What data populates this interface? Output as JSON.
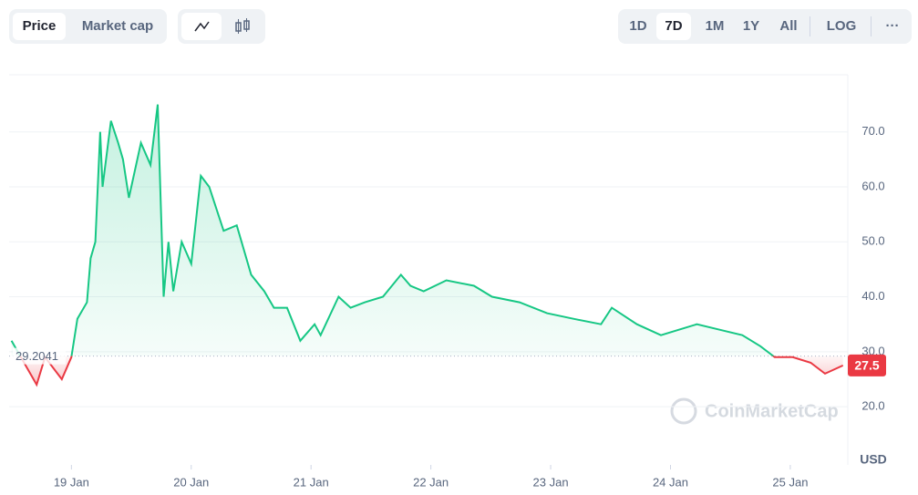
{
  "controls": {
    "metric_tabs": [
      "Price",
      "Market cap"
    ],
    "ranges": [
      "1D",
      "7D",
      "1M",
      "1Y",
      "All"
    ],
    "selected_range": "7D",
    "log": "LOG",
    "more": "···"
  },
  "chart_data": {
    "type": "line",
    "currency": "USD",
    "watermark": "CoinMarketCap",
    "baseline": 29.2041,
    "up_color": "#16c784",
    "down_color": "#ea3943",
    "grid": true,
    "x": [
      18.5,
      18.71,
      18.78,
      18.92,
      19.0,
      19.05,
      19.13,
      19.16,
      19.2,
      19.24,
      19.26,
      19.33,
      19.39,
      19.43,
      19.48,
      19.58,
      19.66,
      19.72,
      19.77,
      19.81,
      19.85,
      19.92,
      20.0,
      20.08,
      20.15,
      20.27,
      20.38,
      20.5,
      20.61,
      20.69,
      20.8,
      20.91,
      21.03,
      21.08,
      21.23,
      21.33,
      21.45,
      21.6,
      21.75,
      21.83,
      21.94,
      22.13,
      22.36,
      22.51,
      22.74,
      22.97,
      23.19,
      23.42,
      23.51,
      23.72,
      23.92,
      24.07,
      24.22,
      24.41,
      24.6,
      24.75,
      24.87,
      25.02,
      25.17,
      25.29,
      25.44
    ],
    "series": [
      {
        "values": [
          32,
          24,
          29,
          25,
          29,
          36,
          39,
          47,
          50,
          70,
          60,
          72,
          68,
          65,
          58,
          68,
          64,
          75,
          40,
          50,
          41,
          50,
          46,
          62,
          60,
          52,
          53,
          44,
          41,
          38,
          38,
          32,
          35,
          33,
          40,
          38,
          39,
          40,
          44,
          42,
          41,
          43,
          42,
          40,
          39,
          37,
          36,
          35,
          38,
          35,
          33,
          34,
          35,
          34,
          33,
          31,
          29,
          29,
          28,
          26,
          27.5
        ]
      }
    ],
    "xlim": [
      18.48,
      25.48
    ],
    "xticks": [
      {
        "value": 19,
        "label": "19 Jan"
      },
      {
        "value": 20,
        "label": "20 Jan"
      },
      {
        "value": 21,
        "label": "21 Jan"
      },
      {
        "value": 22,
        "label": "22 Jan"
      },
      {
        "value": 23,
        "label": "23 Jan"
      },
      {
        "value": 24,
        "label": "24 Jan"
      },
      {
        "value": 25,
        "label": "25 Jan"
      }
    ],
    "ylim": [
      9.4,
      80.4
    ],
    "yticks": [
      {
        "value": 20,
        "label": "20.0"
      },
      {
        "value": 30,
        "label": "30.0"
      },
      {
        "value": 40,
        "label": "40.0"
      },
      {
        "value": 50,
        "label": "50.0"
      },
      {
        "value": 60,
        "label": "60.0"
      },
      {
        "value": 70,
        "label": "70.0"
      }
    ]
  }
}
